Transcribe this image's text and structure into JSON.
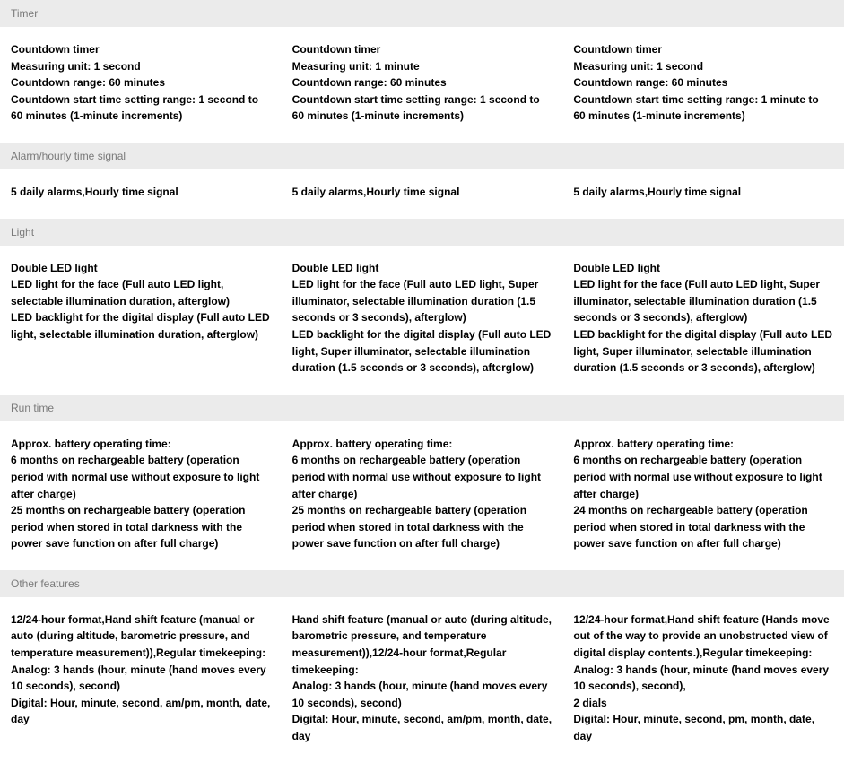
{
  "sections": [
    {
      "title": "Timer",
      "cols": [
        "Countdown timer\nMeasuring unit: 1 second\nCountdown range: 60 minutes\nCountdown start time setting range: 1 second to 60 minutes (1-minute increments)",
        "Countdown timer\nMeasuring unit: 1 minute\nCountdown range: 60 minutes\nCountdown start time setting range: 1 second to 60 minutes (1-minute increments)",
        "Countdown timer\nMeasuring unit: 1 second\nCountdown range: 60 minutes\nCountdown start time setting range: 1 minute to 60 minutes (1-minute increments)"
      ]
    },
    {
      "title": "Alarm/hourly time signal",
      "cols": [
        "5 daily alarms,Hourly time signal",
        "5 daily alarms,Hourly time signal",
        "5 daily alarms,Hourly time signal"
      ]
    },
    {
      "title": "Light",
      "cols": [
        "Double LED light\nLED light for the face (Full auto LED light, selectable illumination duration, afterglow)\nLED backlight for the digital display (Full auto LED light, selectable illumination duration, afterglow)",
        "Double LED light\nLED light for the face (Full auto LED light, Super illuminator, selectable illumination duration (1.5 seconds or 3 seconds), afterglow)\nLED backlight for the digital display (Full auto LED light, Super illuminator, selectable illumination duration (1.5 seconds or 3 seconds), afterglow)",
        "Double LED light\nLED light for the face (Full auto LED light, Super illuminator, selectable illumination duration (1.5 seconds or 3 seconds), afterglow)\nLED backlight for the digital display (Full auto LED light, Super illuminator, selectable illumination duration (1.5 seconds or 3 seconds), afterglow)"
      ]
    },
    {
      "title": "Run time",
      "cols": [
        "Approx. battery operating time:\n6 months on rechargeable battery (operation period with normal use without exposure to light after charge)\n25 months on rechargeable battery (operation period when stored in total darkness with the power save function on after full charge)",
        "Approx. battery operating time:\n6 months on rechargeable battery (operation period with normal use without exposure to light after charge)\n25 months on rechargeable battery (operation period when stored in total darkness with the power save function on after full charge)",
        "Approx. battery operating time:\n6 months on rechargeable battery (operation period with normal use without exposure to light after charge)\n24 months on rechargeable battery (operation period when stored in total darkness with the power save function on after full charge)"
      ]
    },
    {
      "title": "Other features",
      "cols": [
        "12/24-hour format,Hand shift feature (manual or auto (during altitude, barometric pressure, and temperature measurement)),Regular timekeeping:\nAnalog: 3 hands (hour, minute (hand moves every 10 seconds), second)\nDigital: Hour, minute, second, am/pm, month, date, day",
        "Hand shift feature (manual or auto (during altitude, barometric pressure, and temperature measurement)),12/24-hour format,Regular timekeeping:\nAnalog: 3 hands (hour, minute (hand moves every 10 seconds), second)\nDigital: Hour, minute, second, am/pm, month, date, day",
        "12/24-hour format,Hand shift feature (Hands move out of the way to provide an unobstructed view of digital display contents.),Regular timekeeping:\nAnalog: 3 hands (hour, minute (hand moves every 10 seconds), second),\n2 dials\nDigital: Hour, minute, second, pm, month, date, day"
      ]
    }
  ]
}
